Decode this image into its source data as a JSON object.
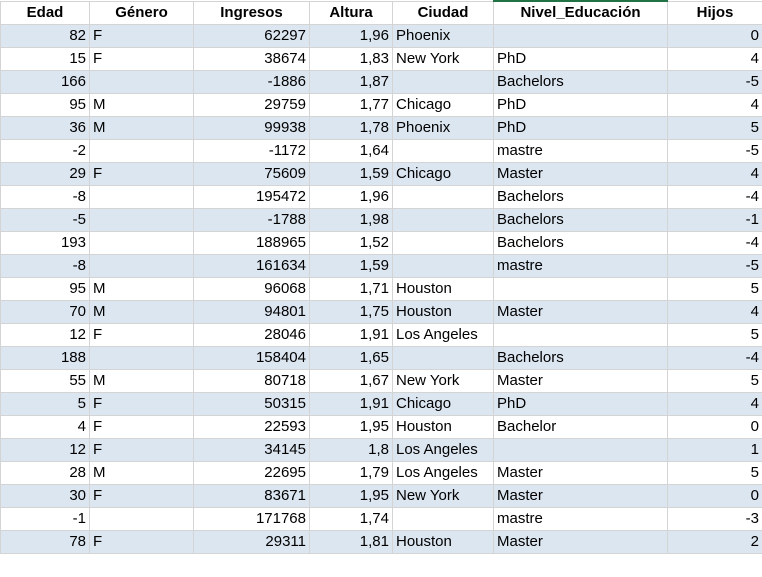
{
  "columns": [
    "Edad",
    "Género",
    "Ingresos",
    "Altura",
    "Ciudad",
    "Nivel_Educación",
    "Hijos"
  ],
  "rows": [
    [
      "82",
      "F",
      "62297",
      "1,96",
      "Phoenix",
      "",
      "0"
    ],
    [
      "15",
      "F",
      "38674",
      "1,83",
      "New York",
      "PhD",
      "4"
    ],
    [
      "166",
      "",
      "-1886",
      "1,87",
      "",
      "Bachelors",
      "-5"
    ],
    [
      "95",
      "M",
      "29759",
      "1,77",
      "Chicago",
      "PhD",
      "4"
    ],
    [
      "36",
      "M",
      "99938",
      "1,78",
      "Phoenix",
      "PhD",
      "5"
    ],
    [
      "-2",
      "",
      "-1172",
      "1,64",
      "",
      "mastre",
      "-5"
    ],
    [
      "29",
      "F",
      "75609",
      "1,59",
      "Chicago",
      "Master",
      "4"
    ],
    [
      "-8",
      "",
      "195472",
      "1,96",
      "",
      "Bachelors",
      "-4"
    ],
    [
      "-5",
      "",
      "-1788",
      "1,98",
      "",
      "Bachelors",
      "-1"
    ],
    [
      "193",
      "",
      "188965",
      "1,52",
      "",
      "Bachelors",
      "-4"
    ],
    [
      "-8",
      "",
      "161634",
      "1,59",
      "",
      "mastre",
      "-5"
    ],
    [
      "95",
      "M",
      "96068",
      "1,71",
      "Houston",
      "",
      "5"
    ],
    [
      "70",
      "M",
      "94801",
      "1,75",
      "Houston",
      "Master",
      "4"
    ],
    [
      "12",
      "F",
      "28046",
      "1,91",
      "Los Angeles",
      "",
      "5"
    ],
    [
      "188",
      "",
      "158404",
      "1,65",
      "",
      "Bachelors",
      "-4"
    ],
    [
      "55",
      "M",
      "80718",
      "1,67",
      "New York",
      "Master",
      "5"
    ],
    [
      "5",
      "F",
      "50315",
      "1,91",
      "Chicago",
      "PhD",
      "4"
    ],
    [
      "4",
      "F",
      "22593",
      "1,95",
      "Houston",
      "Bachelor",
      "0"
    ],
    [
      "12",
      "F",
      "34145",
      "1,8",
      "Los Angeles",
      "",
      "1"
    ],
    [
      "28",
      "M",
      "22695",
      "1,79",
      "Los Angeles",
      "Master",
      "5"
    ],
    [
      "30",
      "F",
      "83671",
      "1,95",
      "New York",
      "Master",
      "0"
    ],
    [
      "-1",
      "",
      "171768",
      "1,74",
      "",
      "mastre",
      "-3"
    ],
    [
      "78",
      "F",
      "29311",
      "1,81",
      "Houston",
      "Master",
      "2"
    ]
  ],
  "colors": {
    "band": "#dce6f1",
    "grid": "#d4d4d4",
    "selected_header_border": "#217346"
  }
}
